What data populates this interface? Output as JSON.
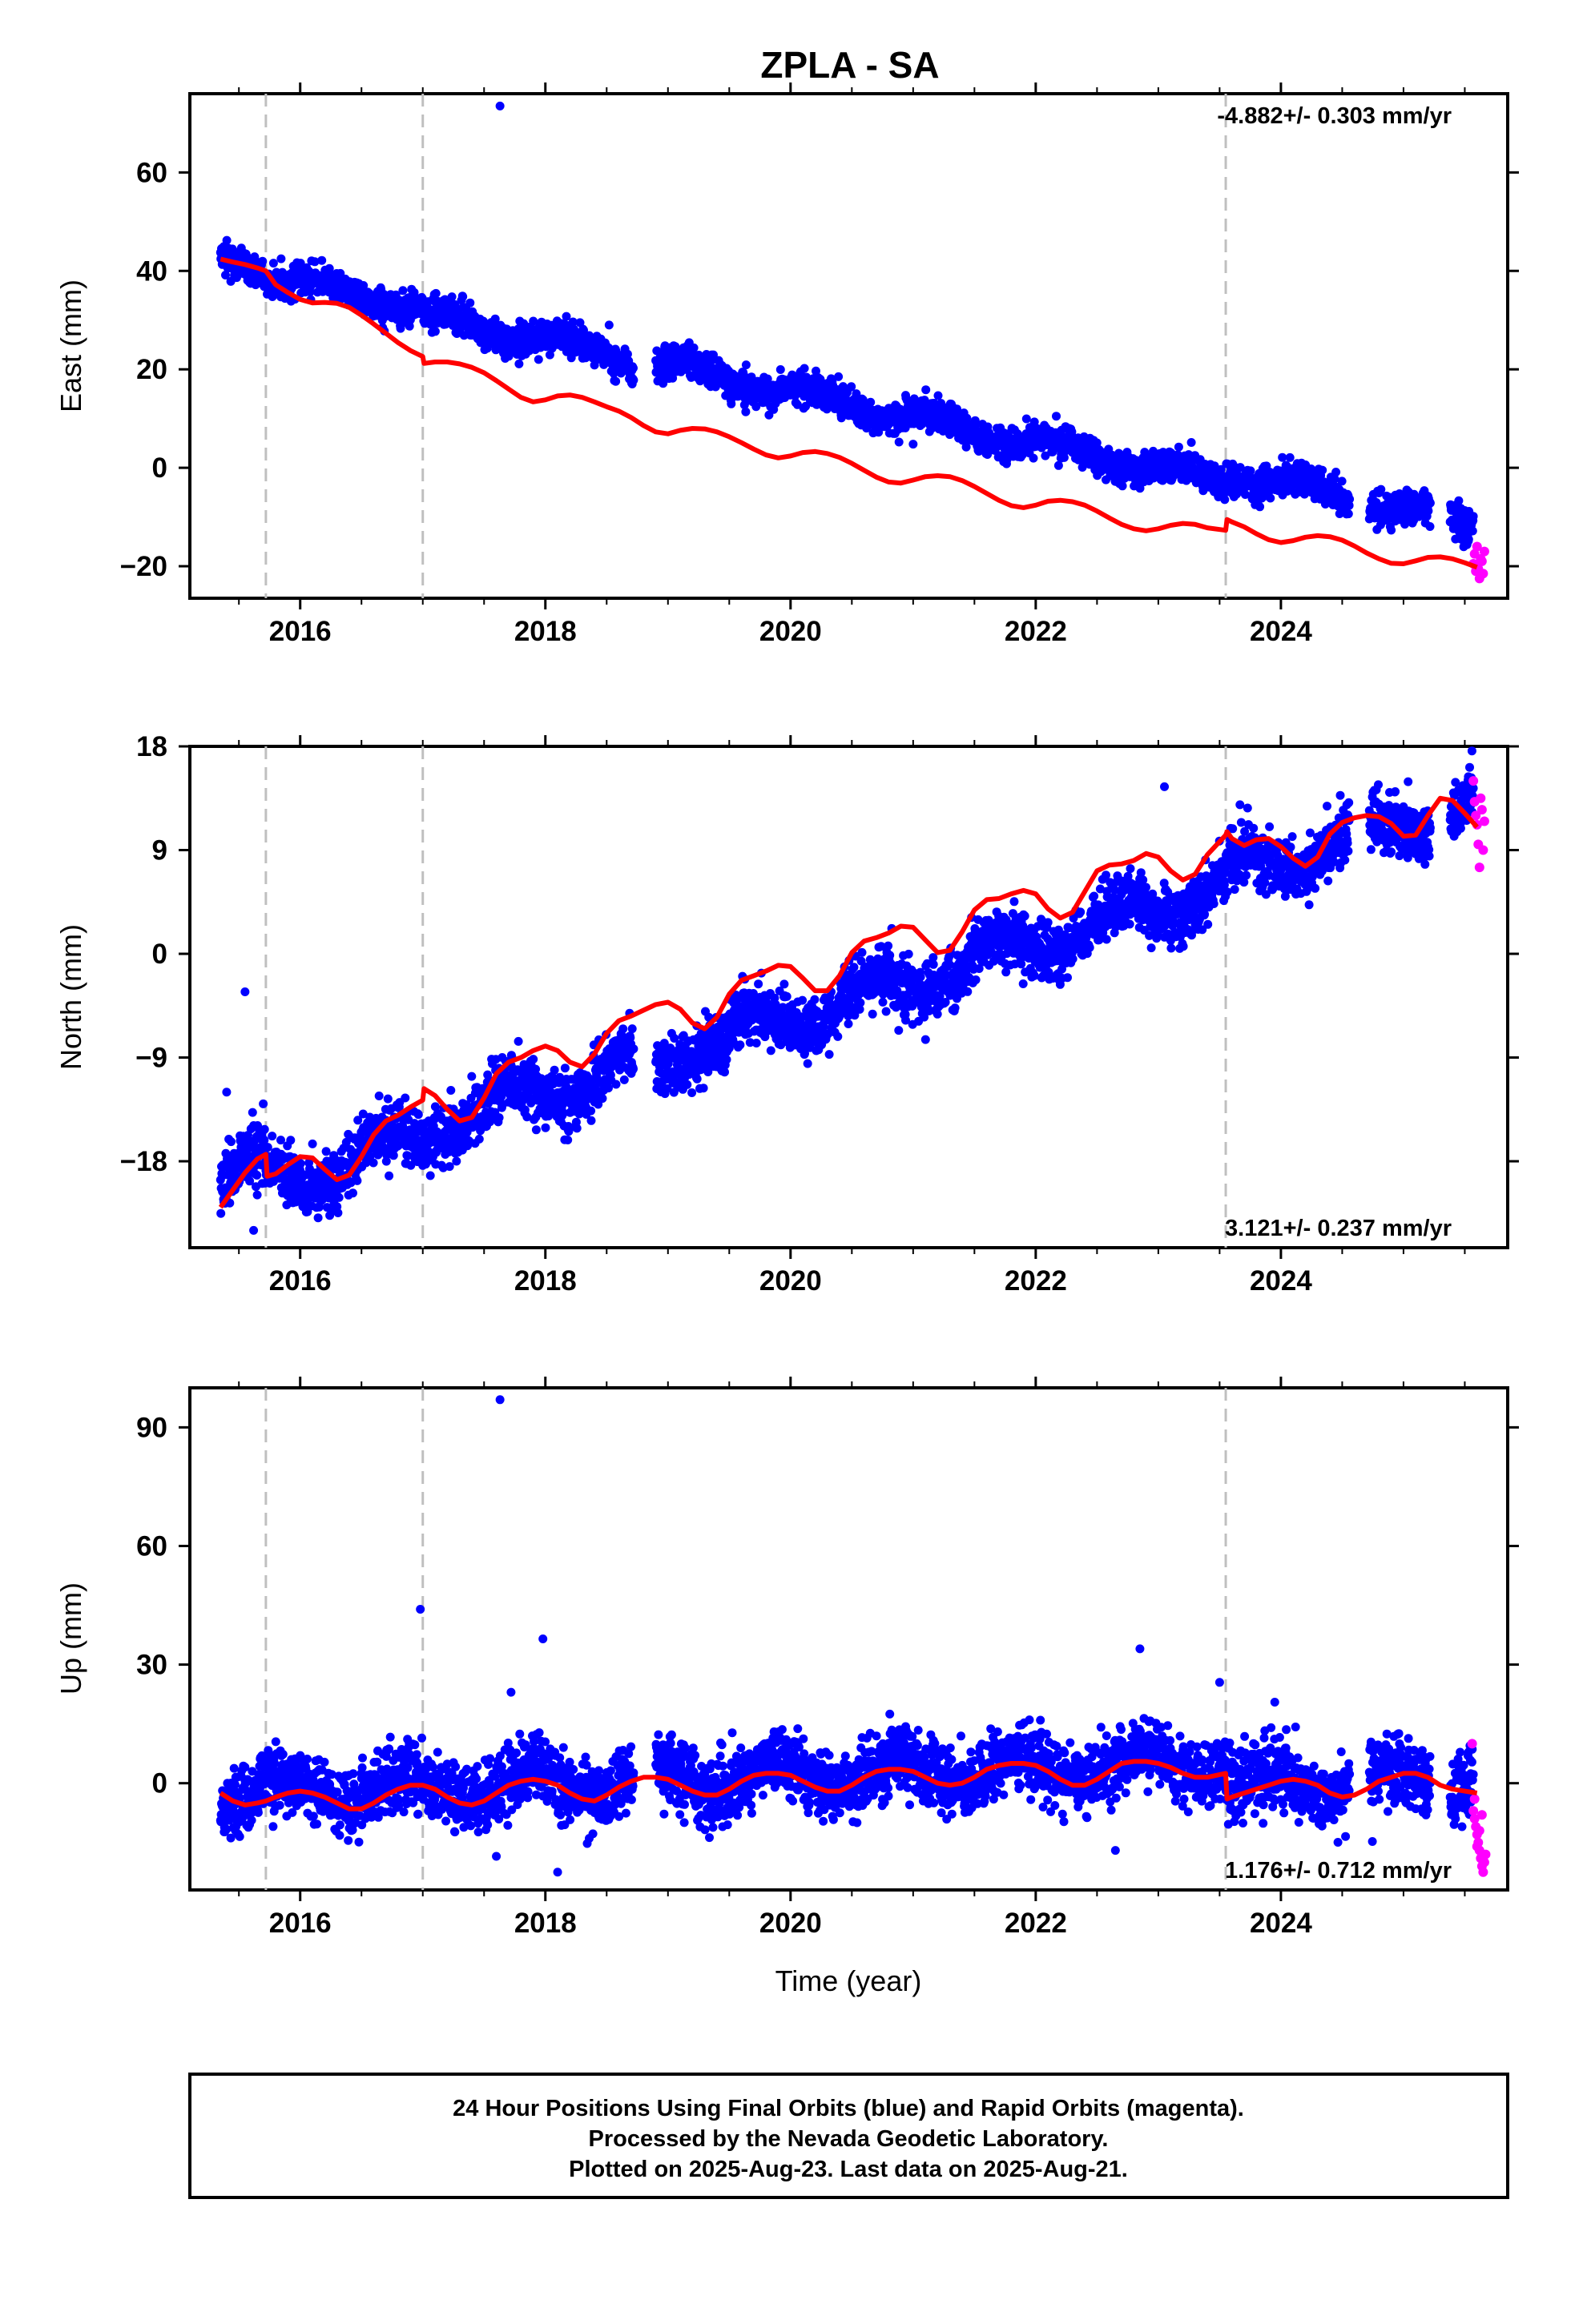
{
  "title": "ZPLA - SA",
  "colors": {
    "final": "#0000ff",
    "rapid": "#ff00ff",
    "model": "#ff0000",
    "event_line": "#bfbfbf",
    "frame": "#000000"
  },
  "chart_data": [
    {
      "type": "scatter",
      "ylabel": "East (mm)",
      "xlabel": "",
      "rate_text": "-4.882+/- 0.303 mm/yr",
      "xlim": [
        2015.1,
        2025.85
      ],
      "ylim": [
        -26.5,
        76
      ],
      "yticks": [
        -20,
        0,
        20,
        40,
        60
      ],
      "ytick_labels": [
        "−20",
        "0",
        "20",
        "40",
        "60"
      ],
      "xticks": [
        2016,
        2018,
        2020,
        2022,
        2024
      ],
      "event_lines": [
        2015.72,
        2017.0,
        2023.55
      ],
      "model": {
        "x": [
          2015.35,
          2015.45,
          2015.55,
          2015.65,
          2015.72,
          2015.8,
          2015.9,
          2016.0,
          2016.1,
          2016.2,
          2016.3,
          2016.4,
          2016.5,
          2016.6,
          2016.7,
          2016.8,
          2016.9,
          2017.0,
          2017.01,
          2017.1,
          2017.2,
          2017.3,
          2017.4,
          2017.5,
          2017.6,
          2017.7,
          2017.8,
          2017.9,
          2018.0,
          2018.1,
          2018.2,
          2018.3,
          2018.4,
          2018.5,
          2018.6,
          2018.7,
          2018.8,
          2018.9,
          2019.0,
          2019.1,
          2019.2,
          2019.3,
          2019.4,
          2019.5,
          2019.6,
          2019.7,
          2019.8,
          2019.9,
          2020.0,
          2020.1,
          2020.2,
          2020.3,
          2020.4,
          2020.5,
          2020.6,
          2020.7,
          2020.8,
          2020.9,
          2021.0,
          2021.1,
          2021.2,
          2021.3,
          2021.4,
          2021.5,
          2021.6,
          2021.7,
          2021.8,
          2021.9,
          2022.0,
          2022.1,
          2022.2,
          2022.3,
          2022.4,
          2022.5,
          2022.6,
          2022.7,
          2022.8,
          2022.9,
          2023.0,
          2023.1,
          2023.2,
          2023.3,
          2023.4,
          2023.55,
          2023.56,
          2023.6,
          2023.7,
          2023.8,
          2023.9,
          2024.0,
          2024.1,
          2024.2,
          2024.3,
          2024.4,
          2024.5,
          2024.6,
          2024.7,
          2024.8,
          2024.9,
          2025.0,
          2025.1,
          2025.2,
          2025.3,
          2025.4,
          2025.5,
          2025.6
        ],
        "y": [
          42.4,
          41.8,
          41.3,
          40.6,
          40.0,
          37.2,
          35.6,
          34.2,
          33.5,
          33.6,
          33.4,
          32.6,
          31.0,
          29.2,
          27.3,
          25.4,
          23.8,
          22.6,
          21.2,
          21.5,
          21.5,
          21.1,
          20.4,
          19.3,
          17.7,
          16.0,
          14.3,
          13.4,
          13.8,
          14.6,
          14.8,
          14.3,
          13.4,
          12.4,
          11.5,
          10.2,
          8.6,
          7.3,
          6.9,
          7.6,
          8.0,
          7.9,
          7.3,
          6.3,
          5.1,
          3.8,
          2.6,
          2.0,
          2.4,
          3.1,
          3.3,
          2.9,
          2.1,
          0.9,
          -0.5,
          -1.9,
          -2.9,
          -3.1,
          -2.5,
          -1.8,
          -1.6,
          -1.8,
          -2.6,
          -3.8,
          -5.2,
          -6.6,
          -7.7,
          -8.1,
          -7.6,
          -6.8,
          -6.6,
          -6.9,
          -7.6,
          -8.8,
          -10.2,
          -11.5,
          -12.4,
          -12.8,
          -12.4,
          -11.7,
          -11.3,
          -11.5,
          -12.2,
          -12.7,
          -10.5,
          -11.0,
          -12.0,
          -13.4,
          -14.6,
          -15.2,
          -14.8,
          -14.1,
          -13.8,
          -14.0,
          -14.7,
          -15.9,
          -17.3,
          -18.5,
          -19.4,
          -19.5,
          -18.9,
          -18.2,
          -18.1,
          -18.5,
          -19.3,
          -20.2
        ]
      },
      "final_points": {
        "start": 2015.35,
        "end": 2025.57,
        "step": 0.0027,
        "linear": [
          42.5,
          -5.2
        ],
        "seasonal": [
          1.5,
          0.55
        ],
        "offsets": [
          [
            2015.72,
            -1.5
          ],
          [
            2017.0,
            -1.4
          ],
          [
            2023.55,
            2.2
          ]
        ],
        "noise": 1.6,
        "gaps": [
          [
            2018.72,
            2018.9
          ],
          [
            2024.56,
            2024.72
          ],
          [
            2025.22,
            2025.38
          ]
        ],
        "outliers": [
          [
            2017.63,
            73.5
          ],
          [
            2018.52,
            29.0
          ],
          [
            2021.0,
            4.8
          ],
          [
            2018.45,
            22.0
          ]
        ]
      },
      "rapid_points": {
        "x": [
          2025.57,
          2025.58,
          2025.59,
          2025.6,
          2025.61,
          2025.62,
          2025.63,
          2025.64,
          2025.65,
          2025.66
        ],
        "y": [
          -19.5,
          -17.5,
          -21.0,
          -16.0,
          -20.5,
          -22.5,
          -18.5,
          -19.0,
          -21.5,
          -17.0
        ]
      }
    },
    {
      "type": "scatter",
      "ylabel": "North (mm)",
      "xlabel": "",
      "rate_text": "3.121+/- 0.237 mm/yr",
      "xlim": [
        2015.1,
        2025.85
      ],
      "ylim": [
        -25.5,
        18
      ],
      "yticks": [
        -18,
        -9,
        0,
        9,
        18
      ],
      "ytick_labels": [
        "−18",
        "−9",
        "0",
        "9",
        "18"
      ],
      "xticks": [
        2016,
        2018,
        2020,
        2022,
        2024
      ],
      "event_lines": [
        2015.72,
        2017.0,
        2023.55
      ],
      "model": {
        "x": [
          2015.35,
          2015.45,
          2015.55,
          2015.65,
          2015.72,
          2015.73,
          2015.8,
          2015.9,
          2016.0,
          2016.1,
          2016.2,
          2016.3,
          2016.4,
          2016.5,
          2016.6,
          2016.7,
          2016.8,
          2016.9,
          2017.0,
          2017.01,
          2017.1,
          2017.2,
          2017.3,
          2017.4,
          2017.5,
          2017.6,
          2017.7,
          2017.8,
          2017.9,
          2018.0,
          2018.1,
          2018.2,
          2018.3,
          2018.4,
          2018.5,
          2018.6,
          2018.7,
          2018.8,
          2018.9,
          2019.0,
          2019.1,
          2019.2,
          2019.3,
          2019.4,
          2019.5,
          2019.6,
          2019.7,
          2019.8,
          2019.9,
          2020.0,
          2020.1,
          2020.2,
          2020.3,
          2020.4,
          2020.5,
          2020.6,
          2020.7,
          2020.8,
          2020.9,
          2021.0,
          2021.1,
          2021.2,
          2021.3,
          2021.4,
          2021.5,
          2021.6,
          2021.7,
          2021.8,
          2021.9,
          2022.0,
          2022.1,
          2022.2,
          2022.3,
          2022.4,
          2022.5,
          2022.6,
          2022.7,
          2022.8,
          2022.9,
          2023.0,
          2023.1,
          2023.2,
          2023.3,
          2023.4,
          2023.55,
          2023.56,
          2023.6,
          2023.7,
          2023.8,
          2023.9,
          2024.0,
          2024.1,
          2024.2,
          2024.3,
          2024.4,
          2024.5,
          2024.6,
          2024.7,
          2024.8,
          2024.9,
          2025.0,
          2025.1,
          2025.2,
          2025.3,
          2025.4,
          2025.5,
          2025.6
        ],
        "y": [
          -22.0,
          -20.5,
          -19.0,
          -17.8,
          -17.4,
          -19.3,
          -19.1,
          -18.3,
          -17.6,
          -17.7,
          -18.7,
          -19.6,
          -19.2,
          -17.6,
          -15.7,
          -14.5,
          -14.0,
          -13.3,
          -12.7,
          -11.7,
          -12.3,
          -13.5,
          -14.5,
          -14.2,
          -12.5,
          -10.4,
          -9.4,
          -9.0,
          -8.4,
          -8.0,
          -8.4,
          -9.4,
          -9.8,
          -8.7,
          -6.9,
          -5.8,
          -5.4,
          -4.9,
          -4.4,
          -4.2,
          -4.8,
          -6.0,
          -6.5,
          -5.5,
          -3.5,
          -2.3,
          -1.9,
          -1.5,
          -1.0,
          -1.1,
          -2.1,
          -3.2,
          -3.2,
          -1.9,
          0.1,
          1.1,
          1.4,
          1.8,
          2.4,
          2.3,
          1.2,
          0.1,
          0.3,
          1.9,
          3.8,
          4.7,
          4.8,
          5.2,
          5.5,
          5.2,
          3.9,
          3.1,
          3.6,
          5.4,
          7.2,
          7.7,
          7.8,
          8.1,
          8.7,
          8.4,
          7.2,
          6.4,
          6.9,
          8.6,
          10.3,
          10.6,
          10.0,
          9.4,
          9.9,
          10.0,
          9.3,
          8.3,
          7.6,
          8.4,
          10.4,
          11.4,
          11.8,
          12.0,
          11.9,
          11.3,
          10.2,
          10.3,
          12.0,
          13.5,
          13.3,
          12.2,
          11.0
        ]
      },
      "final_points": {
        "start": 2015.35,
        "end": 2025.57,
        "step": 0.0027,
        "linear": [
          -19.5,
          3.2
        ],
        "seasonal": [
          -1.4,
          -0.6
        ],
        "offsets": [
          [
            2015.72,
            -1.8
          ],
          [
            2017.0,
            0.9
          ],
          [
            2023.55,
            0.7
          ]
        ],
        "noise": 1.3,
        "gaps": [
          [
            2018.72,
            2018.9
          ],
          [
            2024.56,
            2024.72
          ],
          [
            2025.22,
            2025.38
          ]
        ],
        "outliers": [
          [
            2015.55,
            -3.3
          ],
          [
            2015.62,
            -24.0
          ],
          [
            2015.4,
            -12.0
          ],
          [
            2023.05,
            14.5
          ]
        ]
      },
      "rapid_points": {
        "x": [
          2025.57,
          2025.58,
          2025.59,
          2025.6,
          2025.61,
          2025.62,
          2025.63,
          2025.64,
          2025.65,
          2025.66
        ],
        "y": [
          15.0,
          13.2,
          12.0,
          11.2,
          9.5,
          7.5,
          13.5,
          12.5,
          9.0,
          11.5
        ]
      }
    },
    {
      "type": "scatter",
      "ylabel": "Up (mm)",
      "xlabel": "Time (year)",
      "rate_text": "1.176+/- 0.712 mm/yr",
      "xlim": [
        2015.1,
        2025.85
      ],
      "ylim": [
        -27,
        100
      ],
      "yticks": [
        0,
        30,
        60,
        90
      ],
      "ytick_labels": [
        "0",
        "30",
        "60",
        "90"
      ],
      "xticks": [
        2016,
        2018,
        2020,
        2022,
        2024
      ],
      "event_lines": [
        2015.72,
        2017.0,
        2023.55
      ],
      "model": {
        "x": [
          2015.35,
          2015.45,
          2015.55,
          2015.65,
          2015.72,
          2015.8,
          2015.9,
          2016.0,
          2016.1,
          2016.2,
          2016.3,
          2016.4,
          2016.5,
          2016.6,
          2016.7,
          2016.8,
          2016.9,
          2017.0,
          2017.1,
          2017.2,
          2017.3,
          2017.4,
          2017.5,
          2017.6,
          2017.7,
          2017.8,
          2017.9,
          2018.0,
          2018.1,
          2018.2,
          2018.3,
          2018.4,
          2018.5,
          2018.6,
          2018.7,
          2018.8,
          2018.9,
          2019.0,
          2019.1,
          2019.2,
          2019.3,
          2019.4,
          2019.5,
          2019.6,
          2019.7,
          2019.8,
          2019.9,
          2020.0,
          2020.1,
          2020.2,
          2020.3,
          2020.4,
          2020.5,
          2020.6,
          2020.7,
          2020.8,
          2020.9,
          2021.0,
          2021.1,
          2021.2,
          2021.3,
          2021.4,
          2021.5,
          2021.6,
          2021.7,
          2021.8,
          2021.9,
          2022.0,
          2022.1,
          2022.2,
          2022.3,
          2022.4,
          2022.5,
          2022.6,
          2022.7,
          2022.8,
          2022.9,
          2023.0,
          2023.1,
          2023.2,
          2023.3,
          2023.4,
          2023.55,
          2023.56,
          2023.6,
          2023.7,
          2023.8,
          2023.9,
          2024.0,
          2024.1,
          2024.2,
          2024.3,
          2024.4,
          2024.5,
          2024.6,
          2024.7,
          2024.8,
          2024.9,
          2025.0,
          2025.1,
          2025.2,
          2025.3,
          2025.4,
          2025.5,
          2025.6
        ],
        "y": [
          -2.5,
          -4.5,
          -5.5,
          -5.0,
          -4.5,
          -3.5,
          -2.5,
          -2.0,
          -2.5,
          -3.5,
          -5.0,
          -6.5,
          -6.5,
          -5.0,
          -3.0,
          -1.5,
          -0.5,
          -0.5,
          -1.5,
          -3.5,
          -5.0,
          -5.5,
          -4.5,
          -2.5,
          -0.5,
          0.5,
          1.0,
          0.5,
          -0.5,
          -2.5,
          -4.0,
          -4.5,
          -3.0,
          -1.0,
          0.5,
          1.5,
          1.5,
          1.0,
          -0.5,
          -2.0,
          -3.0,
          -3.0,
          -1.5,
          0.5,
          2.0,
          2.5,
          2.5,
          2.0,
          0.5,
          -1.0,
          -2.0,
          -2.0,
          -0.5,
          1.5,
          3.0,
          3.5,
          3.5,
          3.0,
          1.5,
          0.0,
          -0.5,
          0.0,
          1.5,
          3.5,
          4.5,
          5.0,
          5.0,
          4.5,
          3.0,
          1.0,
          -0.5,
          -0.5,
          1.0,
          3.0,
          5.0,
          5.5,
          5.5,
          5.0,
          4.0,
          2.5,
          1.5,
          1.5,
          2.5,
          -4.0,
          -3.5,
          -2.5,
          -1.5,
          -0.5,
          0.5,
          1.0,
          0.5,
          -0.5,
          -2.5,
          -3.5,
          -3.0,
          -1.5,
          0.5,
          1.5,
          2.5,
          2.5,
          1.5,
          -0.5,
          -1.5,
          -2.0,
          -2.5
        ]
      },
      "final_points": {
        "start": 2015.35,
        "end": 2025.57,
        "step": 0.0027,
        "linear": [
          -3.0,
          1.0
        ],
        "seasonal": [
          -2.5,
          2.5
        ],
        "offsets": [
          [
            2023.55,
            -6.0
          ]
        ],
        "noise": 4.2,
        "gaps": [
          [
            2018.72,
            2018.9
          ],
          [
            2024.56,
            2024.72
          ],
          [
            2025.22,
            2025.38
          ]
        ],
        "outliers": [
          [
            2017.63,
            97.0
          ],
          [
            2016.98,
            44.0
          ],
          [
            2017.98,
            36.5
          ],
          [
            2022.85,
            34.0
          ],
          [
            2017.72,
            23.0
          ],
          [
            2023.5,
            25.5
          ],
          [
            2023.95,
            20.5
          ],
          [
            2018.1,
            -22.5
          ],
          [
            2017.6,
            -18.5
          ],
          [
            2022.65,
            -17.0
          ]
        ]
      },
      "rapid_points": {
        "x": [
          2025.56,
          2025.57,
          2025.58,
          2025.59,
          2025.6,
          2025.61,
          2025.62,
          2025.63,
          2025.64,
          2025.65,
          2025.66,
          2025.67,
          2025.58,
          2025.6,
          2025.62,
          2025.64
        ],
        "y": [
          10.0,
          -7.0,
          -9.0,
          -11.0,
          -13.0,
          -15.0,
          -17.0,
          -19.0,
          -21.0,
          -22.5,
          -20.0,
          -18.0,
          -4.0,
          -16.0,
          -12.0,
          -8.0
        ]
      }
    }
  ],
  "footer": {
    "line1": "24 Hour Positions Using Final Orbits (blue) and Rapid Orbits (magenta).",
    "line2": "Processed by the Nevada Geodetic Laboratory.",
    "line3": "Plotted on 2025-Aug-23. Last data on 2025-Aug-21."
  }
}
